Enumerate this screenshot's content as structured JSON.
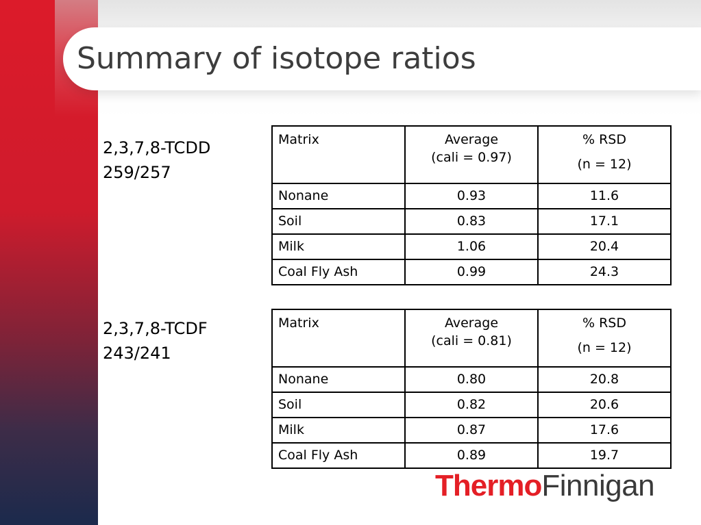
{
  "slide": {
    "title": "Summary of isotope ratios"
  },
  "blocks": [
    {
      "label_line1": "2,3,7,8-TCDD",
      "label_line2": "259/257",
      "table": {
        "headers": {
          "matrix": "Matrix",
          "average_line1": "Average",
          "average_line2": "(cali = 0.97)",
          "rsd_line1": "% RSD",
          "rsd_line2": "(n = 12)"
        },
        "rows": [
          {
            "matrix": "Nonane",
            "average": "0.93",
            "rsd": "11.6"
          },
          {
            "matrix": "Soil",
            "average": "0.83",
            "rsd": "17.1"
          },
          {
            "matrix": "Milk",
            "average": "1.06",
            "rsd": "20.4"
          },
          {
            "matrix": "Coal Fly Ash",
            "average": "0.99",
            "rsd": "24.3"
          }
        ]
      }
    },
    {
      "label_line1": "2,3,7,8-TCDF",
      "label_line2": "243/241",
      "table": {
        "headers": {
          "matrix": "Matrix",
          "average_line1": "Average",
          "average_line2": "(cali = 0.81)",
          "rsd_line1": "% RSD",
          "rsd_line2": "(n = 12)"
        },
        "rows": [
          {
            "matrix": "Nonane",
            "average": "0.80",
            "rsd": "20.8"
          },
          {
            "matrix": "Soil",
            "average": "0.82",
            "rsd": "20.6"
          },
          {
            "matrix": "Milk",
            "average": "0.87",
            "rsd": "17.6"
          },
          {
            "matrix": "Coal Fly Ash",
            "average": "0.89",
            "rsd": "19.7"
          }
        ]
      }
    }
  ],
  "logo": {
    "part1": "Thermo",
    "part2": "Finnigan"
  },
  "colors": {
    "brand_red": "#e41f26",
    "sidebar_top": "#dc1b2a",
    "sidebar_bottom": "#1b2a4c",
    "title_text": "#3d3d3d"
  }
}
